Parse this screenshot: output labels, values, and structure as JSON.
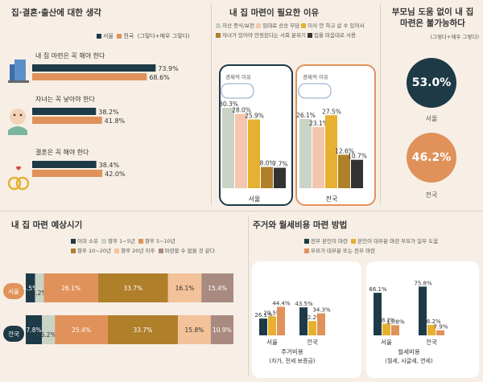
{
  "colors": {
    "navy": "#1e3a47",
    "orange": "#e0925a",
    "sage": "#c9d3c6",
    "peach": "#f2c7ae",
    "mustard": "#e6b030",
    "brown": "#b07f2a",
    "dark": "#333333",
    "lightpeach": "#f3c29a",
    "mauve": "#a98a80"
  },
  "panel1": {
    "title": "집·결혼·출산에 대한 생각",
    "legend": [
      "서울",
      "전국",
      "(그렇다+매우 그렇다)"
    ]
  },
  "panel2": {
    "title": "내 집 마련이 필요한 이유",
    "legend": [
      "자산 증식/보전",
      "임대료 상승 부담",
      "이사 안 하고 살 수 있어서",
      "자녀가 있어야 안정된다는 사회 분위기",
      "집을 마음대로 사용"
    ],
    "annotation": "경제적 이유"
  },
  "panel3": {
    "title_line1": "부모님 도움 없이 내 집",
    "title_line2": "마련은 불가능하다",
    "subtitle": "(그렇다+매우 그렇다)"
  },
  "panel4": {
    "title": "내 집 마련 예상시기",
    "legend": [
      "이미 소유",
      "향후 1~5년",
      "향후 5~10년",
      "향후 10~20년",
      "향후 20년 이후",
      "마련할 수 없을 것 같다"
    ]
  },
  "panel5": {
    "title": "주거와 월세비용 마련 방법",
    "legend": [
      "전부 본인이 마련",
      "본인이 대부분 마련 부모가 일부 도움",
      "부모가 대부분 또는 전부 마련"
    ],
    "group1_line1": "주거비용",
    "group1_line2": "(자가, 전세 보증금)",
    "group2_line1": "월세비용",
    "group2_line2": "(월세, 사글세, 연세)"
  },
  "chart_data": [
    {
      "type": "bar",
      "orientation": "horizontal",
      "categories": [
        "내 집 마련은 꼭 해야 한다",
        "자녀는 꼭 낳아야 한다",
        "결혼은 꼭 해야 한다"
      ],
      "series": [
        {
          "name": "서울",
          "values": [
            73.9,
            38.2,
            38.4
          ]
        },
        {
          "name": "전국",
          "values": [
            68.6,
            41.8,
            42.0
          ]
        }
      ],
      "labels": [
        [
          "73.9%",
          "68.6%"
        ],
        [
          "38.2%",
          "41.8%"
        ],
        [
          "38.4%",
          "42.0%"
        ]
      ]
    },
    {
      "type": "bar",
      "groups": [
        "서울",
        "전국"
      ],
      "series_names": [
        "자산 증식/보전",
        "임대료 상승 부담",
        "이사 안 하고 살 수 있어서",
        "자녀가 있어야 안정된다는 사회 분위기",
        "집을 마음대로 사용"
      ],
      "values": [
        [
          30.3,
          28.0,
          25.9,
          8.0,
          7.7
        ],
        [
          26.1,
          23.1,
          27.5,
          12.6,
          10.7
        ]
      ],
      "labels": [
        [
          "30.3%",
          "28.0%",
          "25.9%",
          "8.0%",
          "7.7%"
        ],
        [
          "26.1%",
          "23.1%",
          "27.5%",
          "12.6%",
          "10.7%"
        ]
      ]
    },
    {
      "type": "pie",
      "categories": [
        "서울",
        "전국"
      ],
      "values": [
        53.0,
        46.2
      ],
      "labels": [
        "53.0%",
        "46.2%"
      ]
    },
    {
      "type": "bar",
      "stacked": true,
      "categories": [
        "서울",
        "전국"
      ],
      "series_names": [
        "이미 소유",
        "향후 1~5년",
        "향후 5~10년",
        "향후 10~20년",
        "향후 20년 이후",
        "마련할 수 없을 것 같다"
      ],
      "values": [
        [
          4.5,
          4.2,
          26.1,
          33.7,
          16.1,
          15.4
        ],
        [
          7.8,
          6.2,
          25.4,
          33.7,
          15.8,
          10.9
        ]
      ],
      "labels": [
        [
          "4.5%",
          "4.2%",
          "26.1%",
          "33.7%",
          "16.1%",
          "15.4%"
        ],
        [
          "7.8%",
          "6.2%",
          "25.4%",
          "33.7%",
          "15.8%",
          "10.9%"
        ]
      ]
    },
    {
      "type": "bar",
      "groups": [
        {
          "categories": [
            "서울",
            "전국"
          ],
          "values": [
            [
              26.1,
              29.5,
              44.4
            ],
            [
              43.5,
              22.2,
              34.3
            ]
          ],
          "labels": [
            [
              "26.1%",
              "29.5%",
              "44.4%"
            ],
            [
              "43.5%",
              "22.2%",
              "34.3%"
            ]
          ]
        },
        {
          "categories": [
            "서울",
            "전국"
          ],
          "values": [
            [
              66.1,
              18.2,
              15.8
            ],
            [
              75.8,
              16.2,
              7.9
            ]
          ],
          "labels": [
            [
              "66.1%",
              "18.2%",
              "15.8%"
            ],
            [
              "75.8%",
              "16.2%",
              "7.9%"
            ]
          ]
        }
      ],
      "series_names": [
        "전부 본인이 마련",
        "본인이 대부분 마련 부모가 일부 도움",
        "부모가 대부분 또는 전부 마련"
      ]
    }
  ]
}
